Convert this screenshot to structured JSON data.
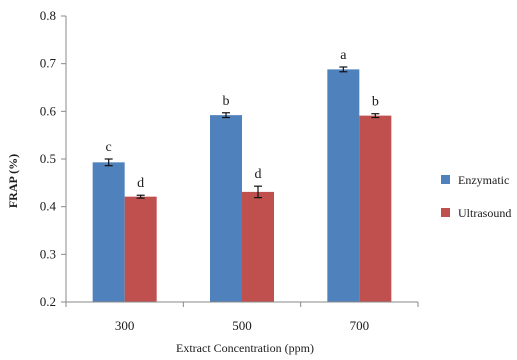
{
  "chart_data": {
    "type": "bar",
    "title": "",
    "xlabel": "Extract Concentration (ppm)",
    "ylabel": "FRAP (%)",
    "categories": [
      "300",
      "500",
      "700"
    ],
    "ylim": [
      0.2,
      0.8
    ],
    "yticks": [
      "0.2",
      "0.3",
      "0.4",
      "0.5",
      "0.6",
      "0.7",
      "0.8"
    ],
    "legend_position": "right",
    "series": [
      {
        "name": "Enzymatic",
        "color": "#4F81BD",
        "values": [
          0.493,
          0.592,
          0.688
        ],
        "errors": [
          0.007,
          0.005,
          0.005
        ],
        "letters": [
          "c",
          "b",
          "a"
        ]
      },
      {
        "name": "Ultrasound",
        "color": "#C0504D",
        "values": [
          0.421,
          0.431,
          0.591
        ],
        "errors": [
          0.003,
          0.012,
          0.004
        ],
        "letters": [
          "d",
          "d",
          "b"
        ]
      }
    ]
  }
}
